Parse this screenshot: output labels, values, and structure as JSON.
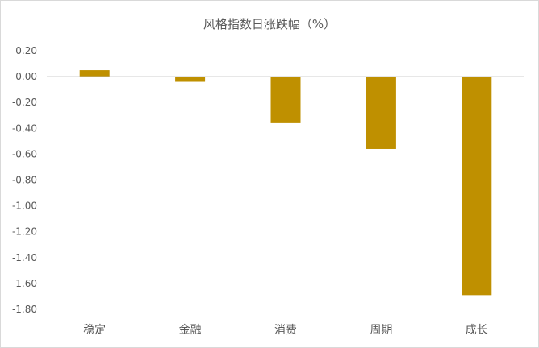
{
  "chart_data": {
    "type": "bar",
    "title": "风格指数日涨跌幅（%）",
    "xlabel": "",
    "ylabel": "",
    "categories": [
      "稳定",
      "金融",
      "消费",
      "周期",
      "成长"
    ],
    "values": [
      0.05,
      -0.04,
      -0.36,
      -0.56,
      -1.69
    ],
    "ylim": [
      -1.8,
      0.2
    ],
    "yticks": [
      "0.20",
      "0.00",
      "-0.20",
      "-0.40",
      "-0.60",
      "-0.80",
      "-1.00",
      "-1.20",
      "-1.40",
      "-1.60",
      "-1.80"
    ],
    "ytick_values": [
      0.2,
      0.0,
      -0.2,
      -0.4,
      -0.6,
      -0.8,
      -1.0,
      -1.2,
      -1.4,
      -1.6,
      -1.8
    ],
    "grid": false,
    "legend": "none",
    "bar_color": "#BF9000",
    "axis_color": "#BFBFBF"
  }
}
